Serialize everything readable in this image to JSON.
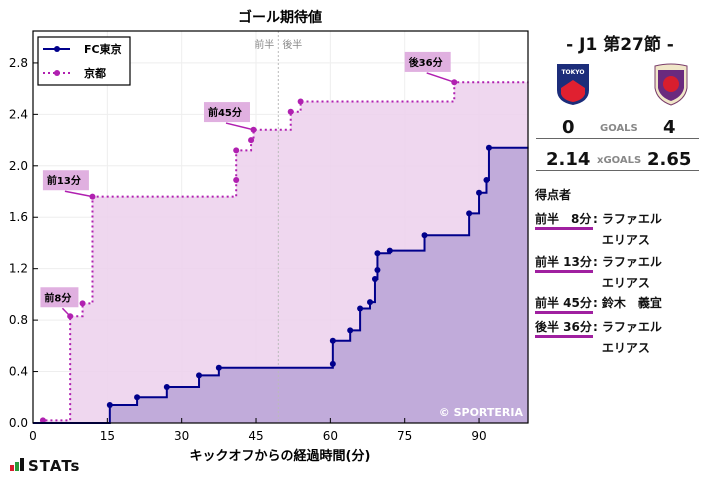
{
  "chart_data": {
    "type": "line",
    "subtype": "step-area",
    "title": "ゴール期待値",
    "xlabel": "キックオフからの経過時間(分)",
    "ylabel": "",
    "xlim": [
      0,
      100
    ],
    "ylim": [
      0,
      3.0
    ],
    "xticks": [
      0,
      15,
      30,
      45,
      60,
      75,
      90
    ],
    "yticks": [
      0.0,
      0.4,
      0.8,
      1.2,
      1.6,
      2.0,
      2.4,
      2.8
    ],
    "ytick_labels": [
      "0.0",
      "0.4",
      "0.8",
      "1.2",
      "1.6",
      "2.0",
      "2.4",
      "2.8"
    ],
    "grid": true,
    "legend_position": "upper left",
    "halftime_marker": {
      "x": 49.5,
      "left_label": "前半",
      "right_label": "後半"
    },
    "series": [
      {
        "name": "FC東京",
        "color": "#00008b",
        "fill": "#b9a3d6",
        "style": "solid",
        "points": [
          [
            0,
            0
          ],
          [
            15.5,
            0.14
          ],
          [
            21,
            0.2
          ],
          [
            27,
            0.28
          ],
          [
            33.5,
            0.37
          ],
          [
            37.5,
            0.43
          ],
          [
            60.5,
            0.46
          ],
          [
            60.5,
            0.64
          ],
          [
            64,
            0.72
          ],
          [
            66,
            0.89
          ],
          [
            68,
            0.94
          ],
          [
            69,
            1.12
          ],
          [
            69.5,
            1.19
          ],
          [
            69.5,
            1.32
          ],
          [
            72,
            1.34
          ],
          [
            79,
            1.46
          ],
          [
            88,
            1.63
          ],
          [
            90,
            1.79
          ],
          [
            91.5,
            1.89
          ],
          [
            92,
            2.14
          ],
          [
            100,
            2.14
          ]
        ]
      },
      {
        "name": "京都",
        "color": "#b020b0",
        "fill": "#ecd0ec",
        "style": "dotted",
        "points": [
          [
            0,
            0
          ],
          [
            2,
            0.02
          ],
          [
            7.5,
            0.83
          ],
          [
            10,
            0.93
          ],
          [
            12,
            1.76
          ],
          [
            41,
            1.89
          ],
          [
            41,
            2.12
          ],
          [
            44,
            2.2
          ],
          [
            44.5,
            2.28
          ],
          [
            52,
            2.42
          ],
          [
            54,
            2.5
          ],
          [
            85,
            2.65
          ],
          [
            100,
            2.65
          ]
        ]
      }
    ],
    "annotations": [
      {
        "text": "前8分",
        "x": 7.5,
        "y": 0.83,
        "box_x": 1.5,
        "box_y": 0.97
      },
      {
        "text": "前13分",
        "x": 12,
        "y": 1.76,
        "box_x": 2,
        "box_y": 1.88
      },
      {
        "text": "前45分",
        "x": 44.5,
        "y": 2.28,
        "box_x": 34.5,
        "box_y": 2.41
      },
      {
        "text": "後36分",
        "x": 85,
        "y": 2.65,
        "box_x": 75,
        "box_y": 2.8
      }
    ],
    "watermark": "© SPORTERIA"
  },
  "match": {
    "round": "- J1 第27節 -",
    "home_team": "FC東京",
    "away_team": "京都",
    "home_goals": "0",
    "away_goals": "4",
    "goals_label": "GOALS",
    "home_xg": "2.14",
    "away_xg": "2.65",
    "xg_label": "xGOALS"
  },
  "scorers": {
    "title": "得点者",
    "items": [
      {
        "time": "前半　8分",
        "name": "ラファエル エリアス"
      },
      {
        "time": "前半 13分",
        "name": "ラファエル エリアス"
      },
      {
        "time": "前半 45分",
        "name": "鈴木　義宜"
      },
      {
        "time": "後半 36分",
        "name": "ラファエル エリアス"
      }
    ]
  },
  "branding": {
    "logo_text": "STATs"
  }
}
